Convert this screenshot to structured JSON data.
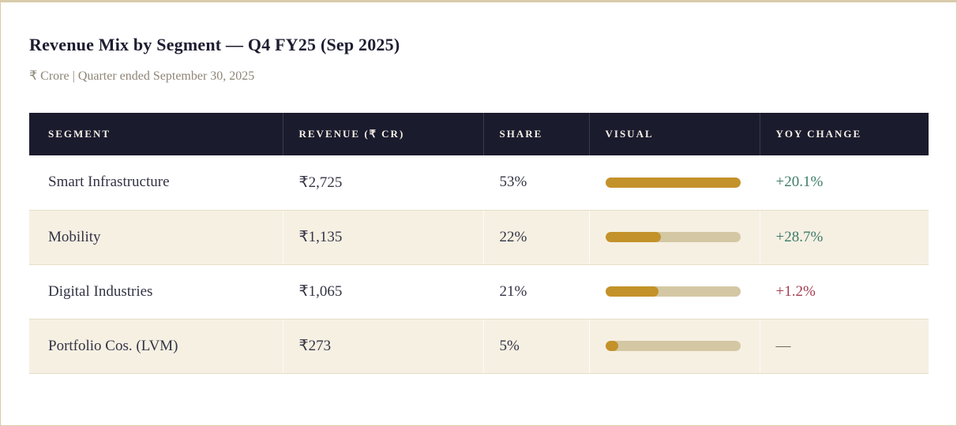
{
  "page": {
    "title": "Revenue Mix by Segment — Q4 FY25 (Sep 2025)",
    "subtitle": "₹ Crore | Quarter ended September 30, 2025"
  },
  "colors": {
    "accent_border": "#d9cbaa",
    "header_bg": "#1b1b2e",
    "row_alt_bg": "#f6f0e3",
    "bar_fill": "#c3922a",
    "bar_track": "#d4c7a3",
    "yoy_positive": "#3d7b68",
    "yoy_negative": "#a53b51",
    "yoy_neutral": "#6f675a"
  },
  "table": {
    "columns": [
      "SEGMENT",
      "REVENUE (₹ CR)",
      "SHARE",
      "VISUAL",
      "YOY CHANGE"
    ],
    "bar_max_pct": 53,
    "rows": [
      {
        "segment": "Smart Infrastructure",
        "revenue": "₹2,725",
        "share": "53%",
        "share_pct": 53,
        "yoy": "+20.1%",
        "yoy_type": "positive"
      },
      {
        "segment": "Mobility",
        "revenue": "₹1,135",
        "share": "22%",
        "share_pct": 22,
        "yoy": "+28.7%",
        "yoy_type": "positive"
      },
      {
        "segment": "Digital Industries",
        "revenue": "₹1,065",
        "share": "21%",
        "share_pct": 21,
        "yoy": "+1.2%",
        "yoy_type": "negative"
      },
      {
        "segment": "Portfolio Cos. (LVM)",
        "revenue": "₹273",
        "share": "5%",
        "share_pct": 5,
        "yoy": "—",
        "yoy_type": "neutral"
      }
    ]
  },
  "chart_data": {
    "type": "table",
    "title": "Revenue Mix by Segment — Q4 FY25 (Sep 2025)",
    "subtitle": "₹ Crore | Quarter ended September 30, 2025",
    "columns": [
      "Segment",
      "Revenue (₹ Cr)",
      "Share",
      "Visual",
      "YoY Change"
    ],
    "segments": [
      "Smart Infrastructure",
      "Mobility",
      "Digital Industries",
      "Portfolio Cos. (LVM)"
    ],
    "revenue_cr": [
      2725,
      1135,
      1065,
      273
    ],
    "share_pct": [
      53,
      22,
      21,
      5
    ],
    "yoy_change_pct": [
      20.1,
      28.7,
      1.2,
      null
    ],
    "visual_note": "horizontal gold bars, fill width proportional to share relative to max share 53%"
  }
}
